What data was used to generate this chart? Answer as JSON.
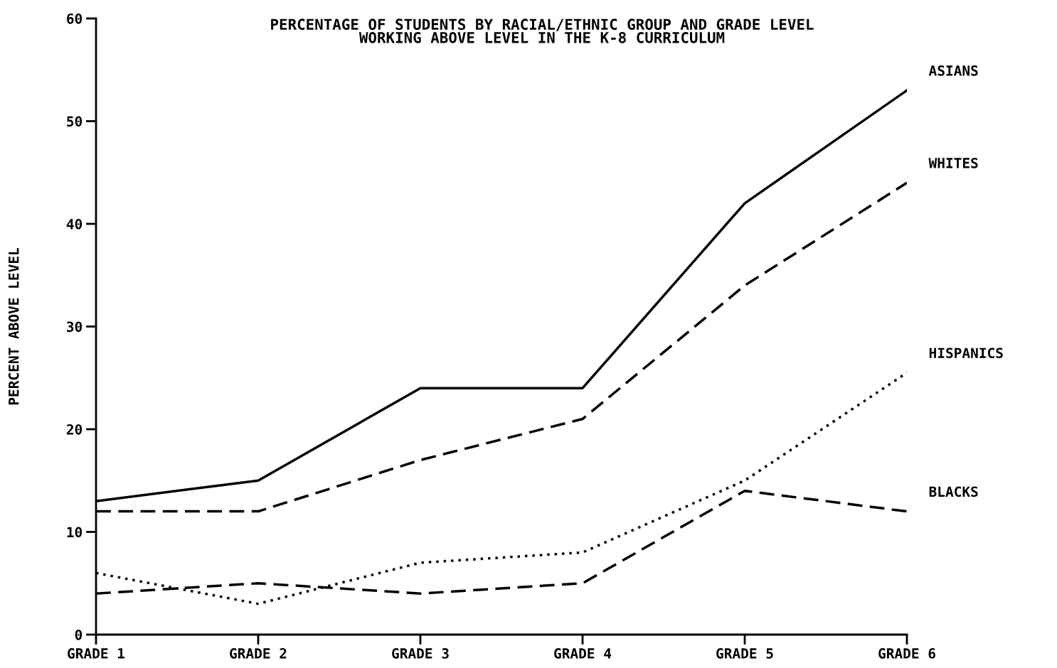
{
  "chart_data": {
    "type": "line",
    "title": "PERCENTAGE OF STUDENTS BY RACIAL/ETHNIC GROUP AND GRADE LEVEL\nWORKING ABOVE LEVEL IN THE K-8 CURRICULUM",
    "ylabel": "PERCENT ABOVE LEVEL",
    "categories": [
      "GRADE 1",
      "GRADE 2",
      "GRADE 3",
      "GRADE 4",
      "GRADE 5",
      "GRADE 6"
    ],
    "series": [
      {
        "name": "ASIANS",
        "color": "#000000",
        "line_style": "solid",
        "values": [
          13,
          15,
          24,
          24,
          42,
          53
        ]
      },
      {
        "name": "WHITES",
        "color": "#000000",
        "line_style": "dashed",
        "values": [
          12,
          12,
          17,
          21,
          34,
          44
        ]
      },
      {
        "name": "HISPANICS",
        "color": "#000000",
        "line_style": "dotted",
        "values": [
          6,
          3,
          7,
          8,
          15,
          25.5
        ]
      },
      {
        "name": "BLACKS",
        "color": "#000000",
        "line_style": "dashed",
        "values": [
          4,
          5,
          4,
          5,
          14,
          12
        ]
      }
    ],
    "ylim": [
      0,
      60
    ],
    "yticks": [
      0,
      10,
      20,
      30,
      40,
      50,
      60
    ],
    "grid": false,
    "legend": false,
    "marker": "none"
  }
}
